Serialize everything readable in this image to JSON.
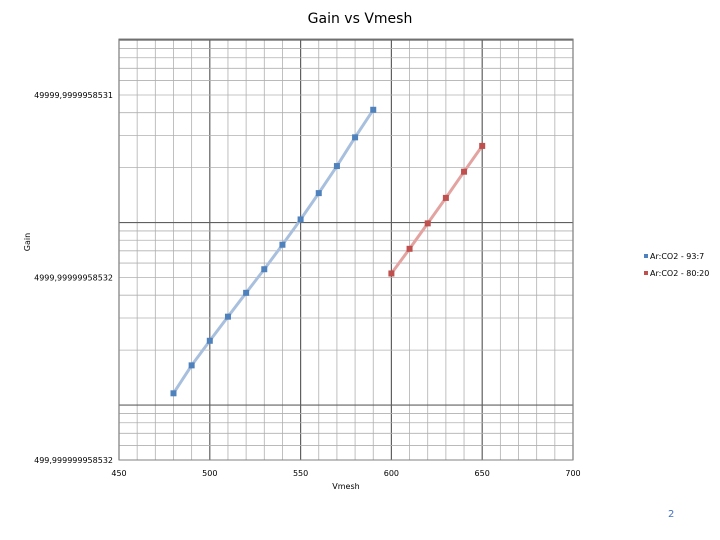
{
  "chart_data": {
    "type": "scatter",
    "title": "Gain vs Vmesh",
    "xlabel": "Vmesh",
    "ylabel": "Gain",
    "xlim": [
      450,
      700
    ],
    "ylim": [
      499.999999958532,
      49999.9999958531
    ],
    "yscale": "log",
    "x_ticks": [
      450,
      500,
      550,
      600,
      650,
      700
    ],
    "y_ticks": [
      499.999999958532,
      4999.99999958532,
      49999.9999958531
    ],
    "y_tick_labels": [
      "499,999999958532",
      "4999,99999958532",
      "49999,9999958531"
    ],
    "grid": true,
    "legend_position": "right",
    "series": [
      {
        "name": "Ar:CO2 - 93:7",
        "color": "#4f81bd",
        "line_color": "#a8c0de",
        "x": [
          480,
          490,
          500,
          510,
          520,
          530,
          540,
          550,
          560,
          570,
          580,
          590
        ],
        "y": [
          1160,
          1650,
          2250,
          3050,
          4120,
          5550,
          7560,
          10400,
          14500,
          20400,
          29300,
          41500
        ]
      },
      {
        "name": "Ar:CO2 - 80:20",
        "color": "#c0504d",
        "line_color": "#e3a3a1",
        "x": [
          600,
          610,
          620,
          630,
          640,
          650
        ],
        "y": [
          5260,
          7180,
          9900,
          13650,
          19000,
          26300
        ]
      }
    ]
  },
  "page_number": "2"
}
